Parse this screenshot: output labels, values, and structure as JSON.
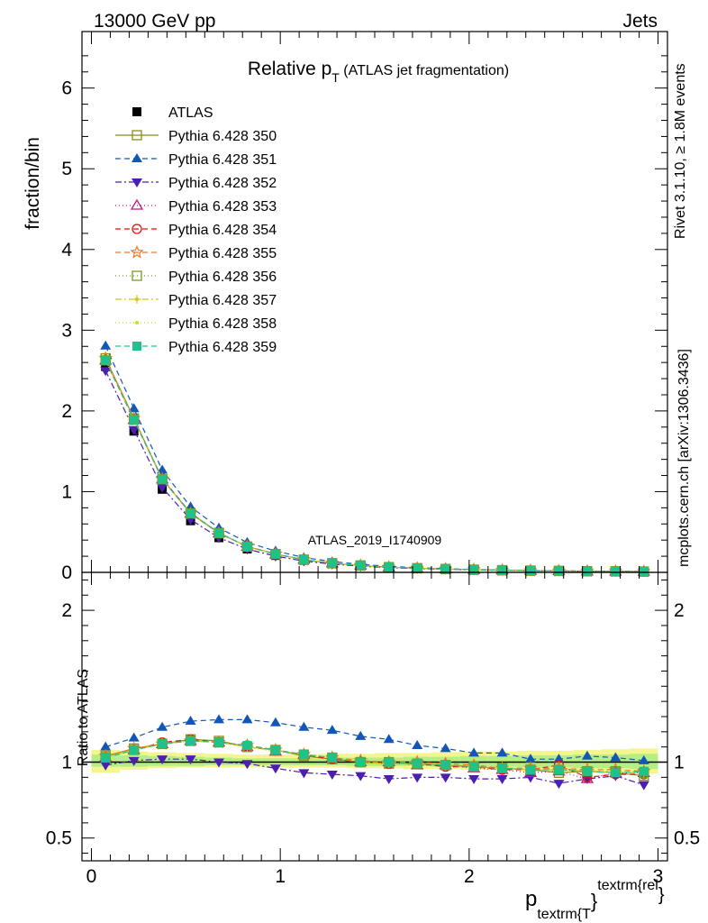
{
  "header": {
    "left": "13000 GeV pp",
    "right": "Jets"
  },
  "side_texts": {
    "rivet_prefix": "Rivet 3.1.10, ",
    "rivet_symbol": "≥",
    "rivet_suffix": " 1.8M events",
    "mcplots": "mcplots.cern.ch [arXiv:1306.3436]"
  },
  "colors": {
    "band_inner": "#b6ee86",
    "band_outer": "#f4f58f",
    "axis": "#000000",
    "ref_line": "#000000"
  },
  "chart_data": {
    "type": "line",
    "title_main": "Relative p",
    "title_sub": "T",
    "title_rest": " (ATLAS jet fragmentation)",
    "watermark": "ATLAS_2019_I1740909",
    "ylabel": "fraction/bin",
    "ratio_ylabel": "Ratio to ATLAS",
    "xlabel_main": "p",
    "xlabel_sub": "textrm{T",
    "xlabel_brace": "}",
    "xlabel_sup": "textrm{rel",
    "xlabel_sup_brace": "}",
    "xlim": [
      -0.05,
      3.05
    ],
    "ylim": [
      0,
      6.7
    ],
    "ratio_ylim": [
      0.35,
      2.25
    ],
    "y_ticks": [
      0,
      1,
      2,
      3,
      4,
      5,
      6
    ],
    "y_tick_labels": [
      "0",
      "1",
      "2",
      "3",
      "4",
      "5",
      "6"
    ],
    "ratio_ticks": [
      0.5,
      1,
      2
    ],
    "ratio_tick_labels": [
      "0.5",
      "1",
      "2"
    ],
    "x_ticks": [
      0,
      1,
      2,
      3
    ],
    "x_tick_labels": [
      "0",
      "1",
      "2",
      "3"
    ],
    "x": [
      0.075,
      0.225,
      0.375,
      0.525,
      0.675,
      0.825,
      0.975,
      1.125,
      1.275,
      1.425,
      1.575,
      1.725,
      1.875,
      2.025,
      2.175,
      2.325,
      2.475,
      2.625,
      2.775,
      2.925
    ],
    "atlas_values": [
      2.55,
      1.75,
      1.03,
      0.64,
      0.43,
      0.29,
      0.21,
      0.15,
      0.11,
      0.085,
      0.065,
      0.052,
      0.042,
      0.034,
      0.028,
      0.023,
      0.019,
      0.016,
      0.013,
      0.011
    ],
    "band": {
      "inner_low": [
        0.97,
        0.97,
        0.975,
        0.975,
        0.98,
        0.98,
        0.98,
        0.98,
        0.98,
        0.975,
        0.975,
        0.975,
        0.97,
        0.97,
        0.97,
        0.965,
        0.965,
        0.96,
        0.96,
        0.955
      ],
      "inner_high": [
        1.05,
        1.045,
        1.04,
        1.035,
        1.03,
        1.025,
        1.025,
        1.025,
        1.03,
        1.03,
        1.03,
        1.035,
        1.035,
        1.04,
        1.04,
        1.045,
        1.045,
        1.05,
        1.05,
        1.055
      ],
      "outer_low": [
        0.93,
        0.95,
        0.96,
        0.965,
        0.965,
        0.965,
        0.965,
        0.965,
        0.965,
        0.96,
        0.96,
        0.955,
        0.955,
        0.95,
        0.95,
        0.945,
        0.94,
        0.935,
        0.93,
        0.925
      ],
      "outer_high": [
        1.08,
        1.07,
        1.065,
        1.06,
        1.055,
        1.05,
        1.05,
        1.05,
        1.055,
        1.055,
        1.06,
        1.06,
        1.065,
        1.07,
        1.07,
        1.075,
        1.075,
        1.08,
        1.085,
        1.09
      ]
    },
    "series": [
      {
        "name": "ATLAS",
        "color": "#000000",
        "marker": "square-filled",
        "dash": "none",
        "ratio": [
          1,
          1,
          1,
          1,
          1,
          1,
          1,
          1,
          1,
          1,
          1,
          1,
          1,
          1,
          1,
          1,
          1,
          1,
          1,
          1
        ]
      },
      {
        "name": "Pythia 6.428 350",
        "color": "#8b8b1e",
        "marker": "square-open",
        "dash": "solid",
        "ratio": [
          1.04,
          1.09,
          1.12,
          1.15,
          1.14,
          1.1,
          1.08,
          1.04,
          1.02,
          1.0,
          0.99,
          0.99,
          0.98,
          0.97,
          0.96,
          0.95,
          0.93,
          0.94,
          0.93,
          0.91
        ]
      },
      {
        "name": "Pythia 6.428 351",
        "color": "#1257b8",
        "marker": "triangle-up-filled",
        "dash": "6,4",
        "ratio": [
          1.1,
          1.16,
          1.23,
          1.27,
          1.28,
          1.28,
          1.26,
          1.23,
          1.21,
          1.17,
          1.15,
          1.11,
          1.09,
          1.06,
          1.06,
          1.02,
          1.02,
          1.04,
          1.03,
          1.01
        ]
      },
      {
        "name": "Pythia 6.428 352",
        "color": "#4b1fb0",
        "marker": "triangle-down-filled",
        "dash": "7,3,2,3",
        "ratio": [
          0.98,
          1.01,
          1.02,
          1.02,
          1.0,
          0.99,
          0.96,
          0.93,
          0.92,
          0.91,
          0.89,
          0.9,
          0.9,
          0.89,
          0.89,
          0.9,
          0.86,
          0.89,
          0.91,
          0.85
        ]
      },
      {
        "name": "Pythia 6.428 353",
        "color": "#c2187a",
        "marker": "triangle-up-open",
        "dash": "1,3",
        "ratio": [
          1.03,
          1.08,
          1.12,
          1.14,
          1.13,
          1.1,
          1.07,
          1.05,
          1.03,
          1.0,
          1.0,
          0.98,
          0.98,
          0.96,
          0.95,
          0.93,
          0.94,
          0.89,
          0.93,
          0.93
        ]
      },
      {
        "name": "Pythia 6.428 354",
        "color": "#dd1111",
        "marker": "circle-open",
        "dash": "6,4",
        "ratio": [
          1.03,
          1.08,
          1.13,
          1.15,
          1.13,
          1.11,
          1.08,
          1.05,
          1.02,
          1.0,
          0.99,
          0.99,
          0.97,
          0.97,
          0.95,
          0.95,
          0.98,
          0.9,
          0.92,
          0.92
        ]
      },
      {
        "name": "Pythia 6.428 355",
        "color": "#f07820",
        "marker": "star-open",
        "dash": "6,4",
        "ratio": [
          1.04,
          1.09,
          1.12,
          1.14,
          1.13,
          1.11,
          1.08,
          1.05,
          1.03,
          1.01,
          1.0,
          1.0,
          0.99,
          0.98,
          0.96,
          0.96,
          0.96,
          0.95,
          0.95,
          0.94
        ]
      },
      {
        "name": "Pythia 6.428 356",
        "color": "#7a9a1a",
        "marker": "square-open",
        "dash": "1,3",
        "ratio": [
          1.03,
          1.08,
          1.12,
          1.14,
          1.13,
          1.1,
          1.08,
          1.05,
          1.03,
          1.0,
          1.0,
          0.99,
          0.98,
          0.97,
          0.96,
          0.95,
          0.95,
          0.94,
          0.94,
          0.93
        ]
      },
      {
        "name": "Pythia 6.428 357",
        "color": "#d9c21a",
        "marker": "dot-star",
        "dash": "7,3,2,3",
        "ratio": [
          1.03,
          1.08,
          1.12,
          1.14,
          1.13,
          1.1,
          1.08,
          1.05,
          1.03,
          1.0,
          0.99,
          0.99,
          0.98,
          0.97,
          0.96,
          0.95,
          0.95,
          0.94,
          0.93,
          0.93
        ]
      },
      {
        "name": "Pythia 6.428 358",
        "color": "#c8e01a",
        "marker": "dot",
        "dash": "1,3",
        "ratio": [
          1.03,
          1.08,
          1.12,
          1.14,
          1.13,
          1.1,
          1.07,
          1.05,
          1.03,
          1.0,
          0.99,
          0.99,
          0.98,
          0.97,
          0.96,
          0.95,
          0.95,
          0.94,
          0.94,
          0.93
        ]
      },
      {
        "name": "Pythia 6.428 359",
        "color": "#1fc28a",
        "marker": "square-filled",
        "dash": "6,4",
        "ratio": [
          1.03,
          1.08,
          1.12,
          1.14,
          1.13,
          1.11,
          1.08,
          1.05,
          1.03,
          1.0,
          1.0,
          0.99,
          0.98,
          0.97,
          0.96,
          0.95,
          0.95,
          0.94,
          0.93,
          0.94
        ]
      }
    ]
  }
}
